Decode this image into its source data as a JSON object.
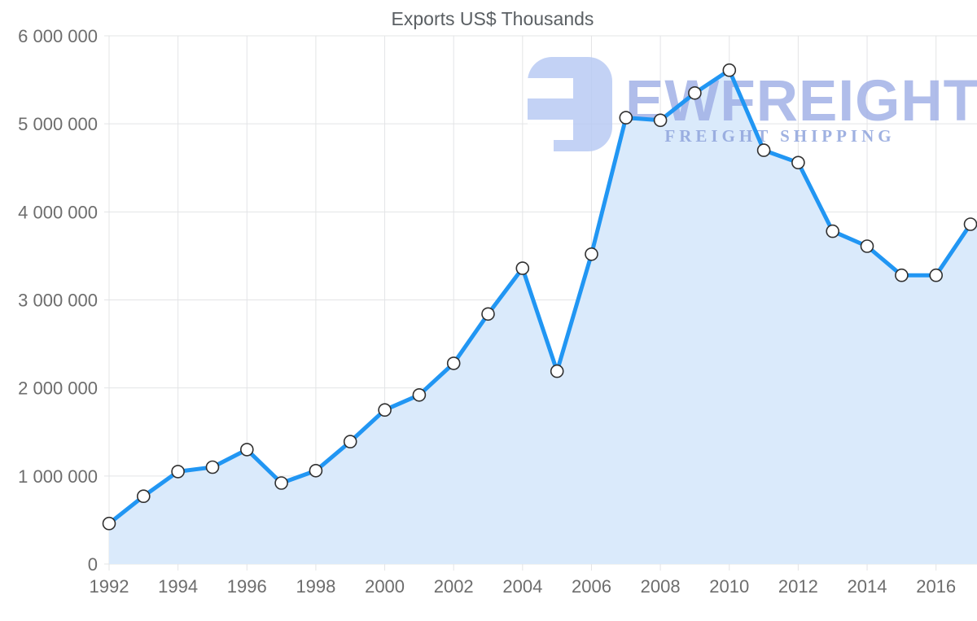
{
  "chart_data": {
    "type": "area",
    "title": "Exports US$ Thousands",
    "x": [
      1992,
      1993,
      1994,
      1995,
      1996,
      1997,
      1998,
      1999,
      2000,
      2001,
      2002,
      2003,
      2004,
      2005,
      2006,
      2007,
      2008,
      2009,
      2010,
      2011,
      2012,
      2013,
      2014,
      2015,
      2016,
      2017
    ],
    "values": [
      460000,
      770000,
      1050000,
      1100000,
      1300000,
      920000,
      1060000,
      1390000,
      1750000,
      1920000,
      2280000,
      2840000,
      3360000,
      2190000,
      3520000,
      5070000,
      5040000,
      5350000,
      5610000,
      4700000,
      4560000,
      3780000,
      3610000,
      3280000,
      3280000,
      3860000
    ],
    "series_name": "Exports US$ Thousands",
    "xlabel": "",
    "ylabel": "",
    "ylim": [
      0,
      6000000
    ],
    "ytick_values": [
      0,
      1000000,
      2000000,
      3000000,
      4000000,
      5000000,
      6000000
    ],
    "ytick_labels": [
      "0",
      "1 000 000",
      "2 000 000",
      "3 000 000",
      "4 000 000",
      "5 000 000",
      "6 000 000"
    ],
    "xtick_values": [
      1992,
      1994,
      1996,
      1998,
      2000,
      2002,
      2004,
      2006,
      2008,
      2010,
      2012,
      2014,
      2016
    ],
    "xtick_labels": [
      "1992",
      "1994",
      "1996",
      "1998",
      "2000",
      "2002",
      "2004",
      "2006",
      "2008",
      "2010",
      "2012",
      "2014",
      "2016"
    ],
    "grid": true,
    "legend": "none",
    "colors": {
      "line": "#2196f3",
      "area_fill": "#daeafb",
      "marker_fill": "#ffffff",
      "marker_stroke": "#303030",
      "gridline": "#e3e4e6",
      "tick_label": "#6d6d6d",
      "title": "#5a5f63"
    }
  },
  "watermark": {
    "brand": "EWFREIGHT",
    "tagline": "FREIGHT SHIPPING",
    "logo_color": "#b7c9f4"
  }
}
